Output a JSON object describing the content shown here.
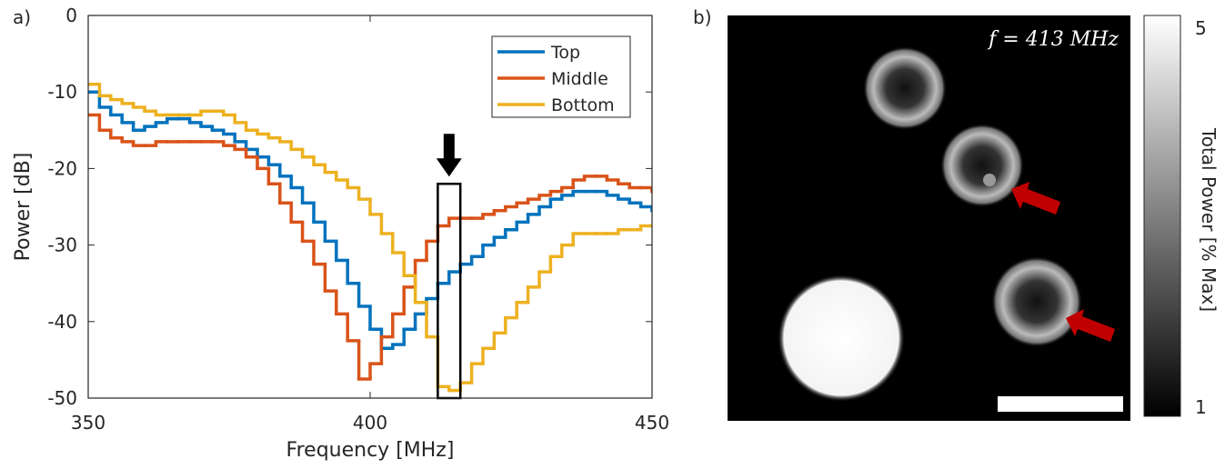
{
  "chart_data": [
    {
      "type": "stairs",
      "panel_label": "a)",
      "xlabel": "Frequency [MHz]",
      "ylabel": "Power [dB]",
      "x": [
        350,
        352,
        354,
        356,
        358,
        360,
        362,
        364,
        366,
        368,
        370,
        372,
        374,
        376,
        378,
        380,
        382,
        384,
        386,
        388,
        390,
        392,
        394,
        396,
        398,
        400,
        402,
        404,
        406,
        408,
        410,
        412,
        414,
        416,
        418,
        420,
        422,
        424,
        426,
        428,
        430,
        432,
        434,
        436,
        438,
        440,
        442,
        444,
        446,
        448,
        450
      ],
      "series": [
        {
          "name": "Top",
          "color": "#0072BD",
          "values": [
            -10,
            -12,
            -13,
            -14,
            -15,
            -14.5,
            -14,
            -13.5,
            -13.5,
            -14,
            -14.5,
            -15,
            -15.5,
            -16.5,
            -17.5,
            -18.5,
            -19.5,
            -21,
            -22.5,
            -24.5,
            -27,
            -29.5,
            -32,
            -35,
            -38,
            -41,
            -43.5,
            -43,
            -41,
            -39,
            -37,
            -35,
            -33.5,
            -32.5,
            -31.5,
            -30,
            -29,
            -28,
            -27,
            -26,
            -25,
            -24,
            -23.5,
            -23,
            -23,
            -23,
            -23.5,
            -24,
            -24.5,
            -25,
            -25.5
          ]
        },
        {
          "name": "Middle",
          "color": "#D95319",
          "values": [
            -13,
            -15,
            -16,
            -16.5,
            -17,
            -17,
            -16.5,
            -16.5,
            -16.5,
            -16.5,
            -16.5,
            -16.5,
            -17,
            -17.5,
            -18.5,
            -20,
            -22,
            -24.5,
            -27,
            -29.5,
            -32.5,
            -36,
            -39,
            -42.5,
            -47.5,
            -45.5,
            -42,
            -39,
            -35.5,
            -32,
            -29.5,
            -27.5,
            -26.5,
            -26.5,
            -26.5,
            -26,
            -25.5,
            -25,
            -24.5,
            -24,
            -23.5,
            -23,
            -22.5,
            -21.5,
            -21,
            -21,
            -21.5,
            -22,
            -22.5,
            -22.5,
            -23
          ]
        },
        {
          "name": "Bottom",
          "color": "#EDB120",
          "values": [
            -9,
            -10.5,
            -11,
            -11.5,
            -12,
            -12.5,
            -13,
            -13,
            -13,
            -13,
            -12.5,
            -12.5,
            -13,
            -14,
            -15,
            -15.5,
            -16,
            -16.5,
            -17.5,
            -18.5,
            -19.5,
            -20.5,
            -21.5,
            -22.5,
            -24,
            -26,
            -28.5,
            -31,
            -34,
            -37.5,
            -42,
            -48.5,
            -49,
            -48,
            -45.5,
            -43.5,
            -41.5,
            -39.5,
            -37.5,
            -35.5,
            -33.5,
            -31.5,
            -30,
            -28.5,
            -28.5,
            -28.5,
            -28.5,
            -28,
            -28,
            -27.5,
            -27.5
          ]
        }
      ],
      "xlim": [
        350,
        450
      ],
      "xticks": [
        350,
        400,
        450
      ],
      "ylim": [
        -50,
        0
      ],
      "yticks": [
        -50,
        -40,
        -30,
        -20,
        -10,
        0
      ],
      "highlight_x": [
        412,
        416
      ],
      "highlight_y": [
        -50,
        -22
      ],
      "legend": "top-right"
    },
    {
      "type": "image",
      "panel_label": "b)",
      "annotation": "f = 413 MHz",
      "colorbar_label": "Total Power [% Max]",
      "clim": [
        1,
        5
      ],
      "cticks": [
        1,
        5
      ]
    }
  ]
}
